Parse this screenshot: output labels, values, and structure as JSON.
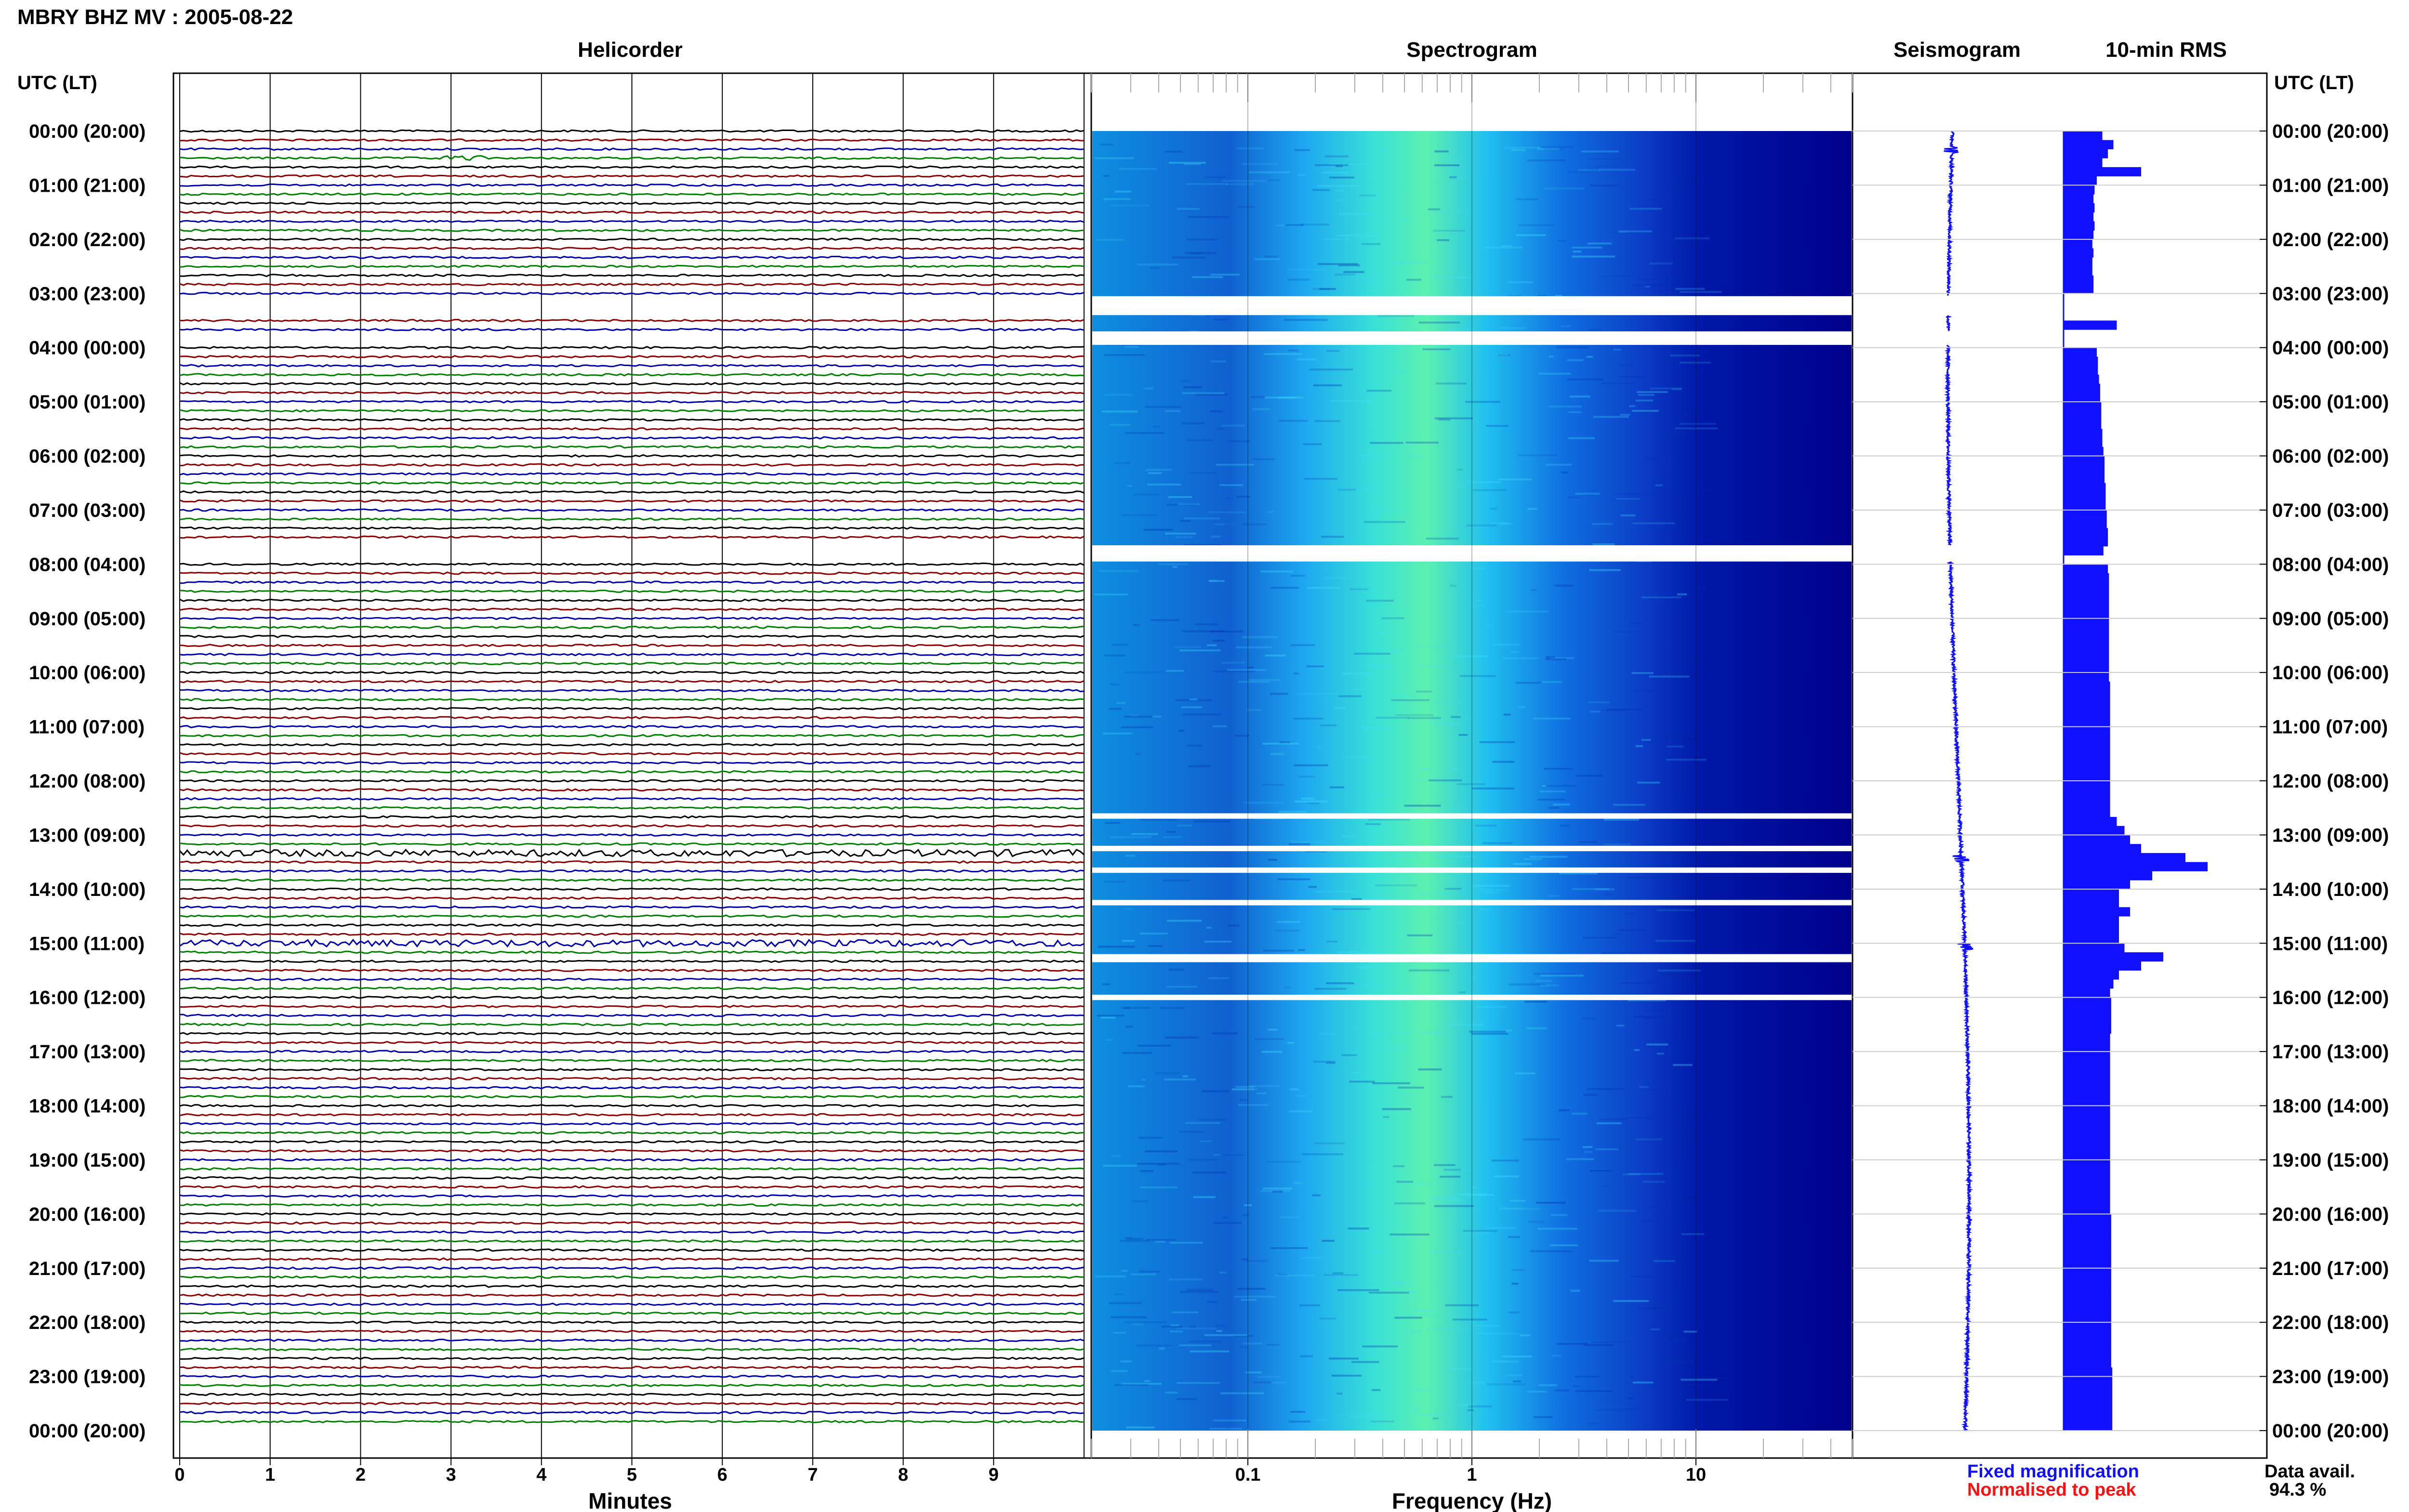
{
  "header": {
    "title": "MBRY BHZ MV : 2005-08-22"
  },
  "panels": {
    "helicorder": "Helicorder",
    "spectrogram": "Spectrogram",
    "seismogram": "Seismogram",
    "rms": "10-min RMS"
  },
  "axes": {
    "left_label": "UTC (LT)",
    "right_label": "UTC (LT)",
    "helicorder_xlabel": "Minutes",
    "spectrogram_xlabel": "Frequency (Hz)"
  },
  "legend": {
    "fixed": "Fixed magnification",
    "normalised": "Normalised to peak",
    "fixed_color": "#1010ff",
    "normalised_color": "#ff1010"
  },
  "availability": {
    "label": "Data avail.",
    "value": "94.3 %"
  },
  "colors": {
    "trace_cycle": [
      "#000000",
      "#8b0000",
      "#0000aa",
      "#008000"
    ],
    "spectrogram_low": "#00008b",
    "spectrogram_high": "#7fff7f",
    "rms_bar": "#1010ff"
  },
  "chart_data": [
    {
      "type": "line",
      "name": "helicorder",
      "time_labels": [
        "00:00 (20:00)",
        "01:00 (21:00)",
        "02:00 (22:00)",
        "03:00 (23:00)",
        "04:00 (00:00)",
        "05:00 (01:00)",
        "06:00 (02:00)",
        "07:00 (03:00)",
        "08:00 (04:00)",
        "09:00 (05:00)",
        "10:00 (06:00)",
        "11:00 (07:00)",
        "12:00 (08:00)",
        "13:00 (09:00)",
        "14:00 (10:00)",
        "15:00 (11:00)",
        "16:00 (12:00)",
        "17:00 (13:00)",
        "18:00 (14:00)",
        "19:00 (15:00)",
        "20:00 (16:00)",
        "21:00 (17:00)",
        "22:00 (18:00)",
        "23:00 (19:00)",
        "00:00 (20:00)"
      ],
      "x_ticks": [
        "0",
        "1",
        "2",
        "3",
        "4",
        "5",
        "6",
        "7",
        "8",
        "9"
      ],
      "xlim": [
        0,
        10
      ],
      "traces_per_hour": 6,
      "gap_hours": [
        [
          3.05,
          3.4
        ],
        [
          3.7,
          3.95
        ],
        [
          7.65,
          7.95
        ]
      ],
      "events": [
        {
          "hour": 0.5,
          "minute_start": 2.8,
          "minute_end": 3.4,
          "level": "moderate"
        },
        {
          "hour": 13.33,
          "minute_start": 0,
          "minute_end": 10,
          "level": "high"
        },
        {
          "hour": 14.97,
          "minute_start": 0,
          "minute_end": 10,
          "level": "high"
        }
      ]
    },
    {
      "type": "heatmap",
      "name": "spectrogram",
      "x_scale": "log",
      "xlim": [
        0.02,
        50
      ],
      "x_ticks": [
        "0.1",
        "1",
        "10"
      ],
      "peak_band_hz": [
        0.25,
        0.5
      ],
      "gap_hours": [
        [
          3.05,
          3.4
        ],
        [
          3.7,
          3.95
        ],
        [
          7.65,
          7.95
        ],
        [
          12.6,
          12.7
        ],
        [
          13.2,
          13.3
        ],
        [
          13.6,
          13.7
        ],
        [
          14.2,
          14.3
        ],
        [
          15.2,
          15.35
        ],
        [
          15.95,
          16.05
        ]
      ]
    },
    {
      "type": "line",
      "name": "seismogram",
      "ylim": [
        0,
        24
      ],
      "spikes_hours": [
        0.35,
        13.45,
        15.05
      ]
    },
    {
      "type": "bar",
      "name": "10-min RMS",
      "orientation": "horizontal",
      "ylim": [
        0,
        24
      ],
      "values": [
        0.35,
        0.45,
        0.4,
        0.35,
        0.7,
        0.3,
        0.28,
        0.27,
        0.28,
        0.27,
        0.28,
        0.27,
        0.26,
        0.27,
        0.26,
        0.26,
        0.27,
        0.27,
        0.0,
        0.0,
        0.0,
        0.48,
        0.0,
        0.0,
        0.3,
        0.31,
        0.31,
        0.32,
        0.33,
        0.33,
        0.34,
        0.34,
        0.34,
        0.35,
        0.35,
        0.36,
        0.37,
        0.37,
        0.37,
        0.38,
        0.38,
        0.38,
        0.39,
        0.39,
        0.4,
        0.4,
        0.36,
        0.0,
        0.4,
        0.41,
        0.41,
        0.41,
        0.41,
        0.41,
        0.41,
        0.41,
        0.41,
        0.41,
        0.41,
        0.41,
        0.41,
        0.42,
        0.42,
        0.42,
        0.42,
        0.42,
        0.42,
        0.42,
        0.42,
        0.42,
        0.42,
        0.42,
        0.42,
        0.42,
        0.42,
        0.42,
        0.48,
        0.55,
        0.6,
        0.7,
        1.1,
        1.3,
        0.8,
        0.6,
        0.5,
        0.5,
        0.6,
        0.5,
        0.5,
        0.5,
        0.55,
        0.9,
        0.7,
        0.5,
        0.45,
        0.42,
        0.43,
        0.43,
        0.43,
        0.43,
        0.42,
        0.42,
        0.42,
        0.42,
        0.42,
        0.42,
        0.42,
        0.42,
        0.42,
        0.42,
        0.42,
        0.42,
        0.42,
        0.42,
        0.42,
        0.42,
        0.42,
        0.42,
        0.42,
        0.42,
        0.43,
        0.43,
        0.43,
        0.43,
        0.43,
        0.43,
        0.43,
        0.43,
        0.43,
        0.43,
        0.43,
        0.43,
        0.43,
        0.43,
        0.43,
        0.43,
        0.43,
        0.44,
        0.44,
        0.44,
        0.44,
        0.44,
        0.44,
        0.44
      ],
      "gap_hours": [
        [
          3.05,
          3.4
        ],
        [
          3.7,
          3.95
        ],
        [
          7.65,
          7.95
        ]
      ]
    }
  ]
}
